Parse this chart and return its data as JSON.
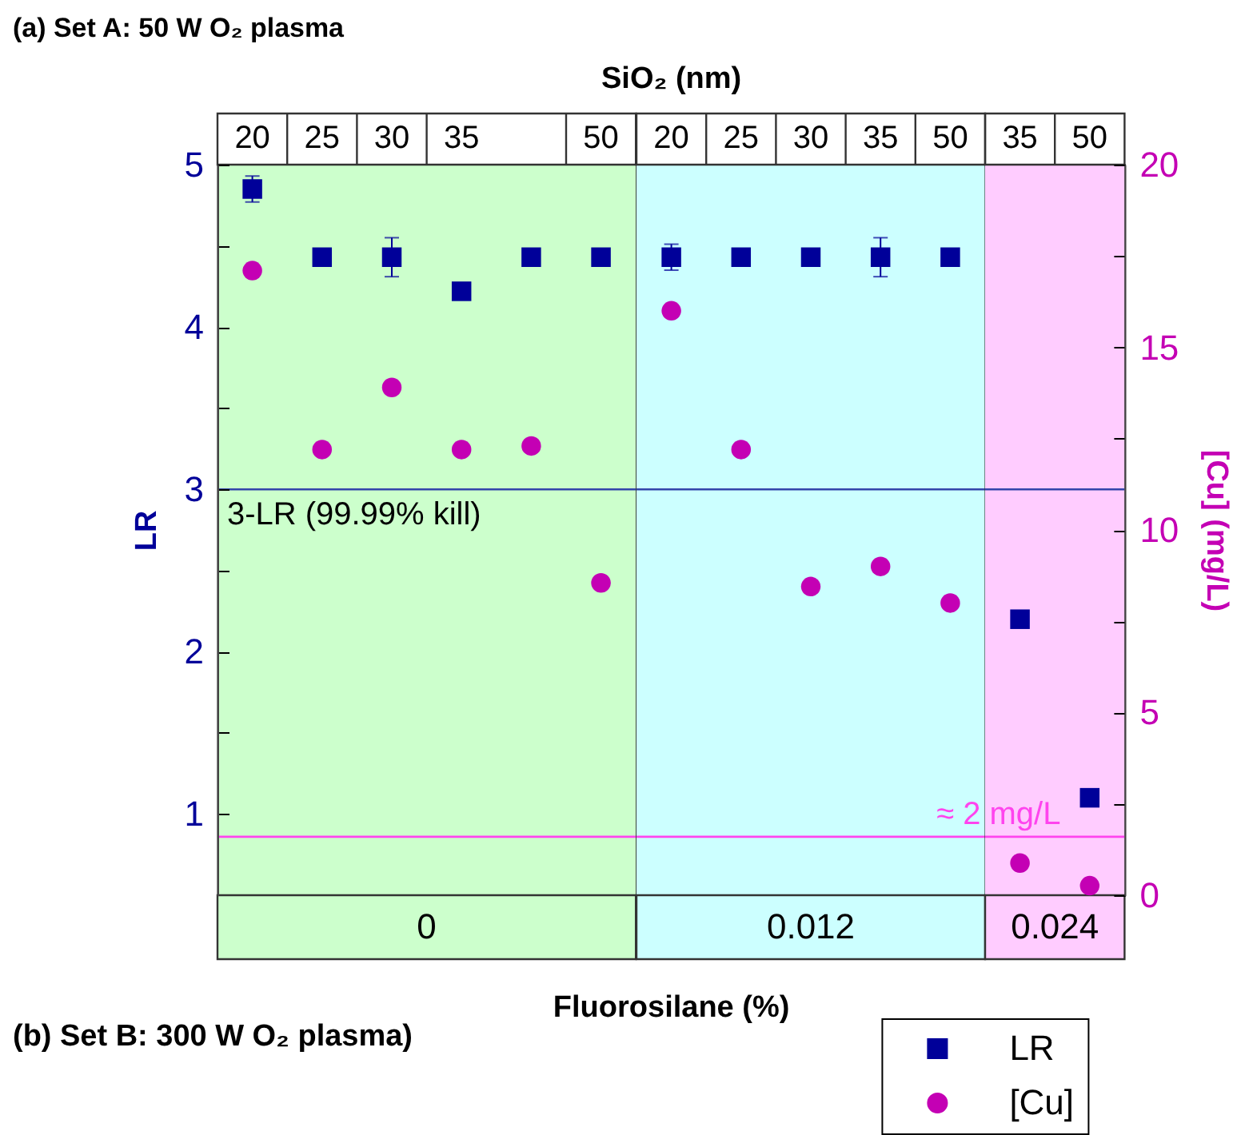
{
  "chart_data": [
    {
      "type": "scatter",
      "title": "(a) Set A: 50 W O₂ plasma",
      "ylabel": "LR",
      "categories": [
        "20",
        "25",
        "30",
        "35",
        null,
        "50"
      ],
      "series": [
        {
          "color": "#000099",
          "marker": "square",
          "values": [
            4.85,
            4.43,
            4.43,
            4.22,
            4.43,
            4.43
          ],
          "errors": [
            0.08,
            null,
            0.12,
            null,
            null,
            null
          ]
        },
        {
          "color": "#c400b4",
          "marker": "circle",
          "axis": "y2",
          "values": [
            17.1,
            12.2,
            13.9,
            12.2,
            12.3,
            8.55
          ]
        }
      ],
      "ylim": [
        0.5,
        5
      ],
      "yticks": [
        1,
        {
          "value": 1.5,
          "label": null
        },
        2,
        {
          "value": 2.5,
          "label": null
        },
        3,
        {
          "value": 3.5,
          "label": null
        },
        4,
        {
          "value": 4.5,
          "label": null
        },
        5
      ],
      "y2lim": [
        0,
        20
      ],
      "ref_lines": [
        {
          "axis": "y",
          "value": 3,
          "label": "3-LR (99.99% kill)",
          "color": "#3344aa"
        },
        {
          "axis": "y2",
          "value": 1.6,
          "color": "#ff44ee"
        }
      ],
      "bands": [
        {
          "axis": "x",
          "from": "20",
          "to": "50",
          "label": "0",
          "color": "#ccffcc"
        }
      ],
      "annotations": [
        "(b) Set B: 300 W O₂ plasma)"
      ],
      "tick_labels": "xy"
    },
    {
      "type": "scatter",
      "x2label": "SiO₂ (nm)",
      "xlabel": "Fluorosilane (%)",
      "categories": [
        "20",
        "25",
        "30",
        "35",
        "50"
      ],
      "series": [
        {
          "color": "#000099",
          "marker": "square",
          "values": [
            4.43,
            4.43,
            4.43,
            4.43,
            4.43
          ],
          "errors": [
            0.08,
            null,
            null,
            0.12,
            null
          ]
        },
        {
          "color": "#c400b4",
          "marker": "circle",
          "axis": "y2",
          "values": [
            16.0,
            12.2,
            8.45,
            9.0,
            8.0
          ]
        }
      ],
      "ylim": [
        0.5,
        5
      ],
      "y2lim": [
        0,
        20
      ],
      "ref_lines": [
        {
          "axis": "y",
          "value": 3,
          "color": "#3344aa"
        },
        {
          "axis": "y2",
          "value": 1.6,
          "color": "#ff44ee"
        }
      ],
      "bands": [
        {
          "axis": "x",
          "from": "20",
          "to": "50",
          "label": "0.012",
          "color": "#ccffff"
        }
      ],
      "tick_labels": "x"
    },
    {
      "type": "scatter",
      "y2label": "[Cu] (mg/L)",
      "categories": [
        "35",
        "50"
      ],
      "series": [
        {
          "name": "LR",
          "color": "#000099",
          "marker": "square",
          "values": [
            2.2,
            1.1
          ]
        },
        {
          "name": "[Cu]",
          "color": "#c400b4",
          "marker": "circle",
          "axis": "y2",
          "values": [
            0.88,
            0.26
          ]
        }
      ],
      "ylim": [
        0.5,
        5
      ],
      "y2lim": [
        0,
        20
      ],
      "y2ticks": [
        0,
        {
          "value": 2.5,
          "label": null
        },
        5,
        {
          "value": 7.5,
          "label": null
        },
        10,
        {
          "value": 12.5,
          "label": null
        },
        15,
        {
          "value": 17.5,
          "label": null
        },
        20
      ],
      "ref_lines": [
        {
          "axis": "y",
          "value": 3,
          "color": "#3344aa"
        },
        {
          "axis": "y2",
          "value": 1.6,
          "label": "≈ 2 mg/L",
          "color": "#ff44ee"
        }
      ],
      "bands": [
        {
          "axis": "x",
          "from": "35",
          "to": "50",
          "label": "0.024",
          "color": "#ffccff"
        }
      ],
      "tick_labels": "xy2",
      "legend": "bottom left"
    }
  ]
}
